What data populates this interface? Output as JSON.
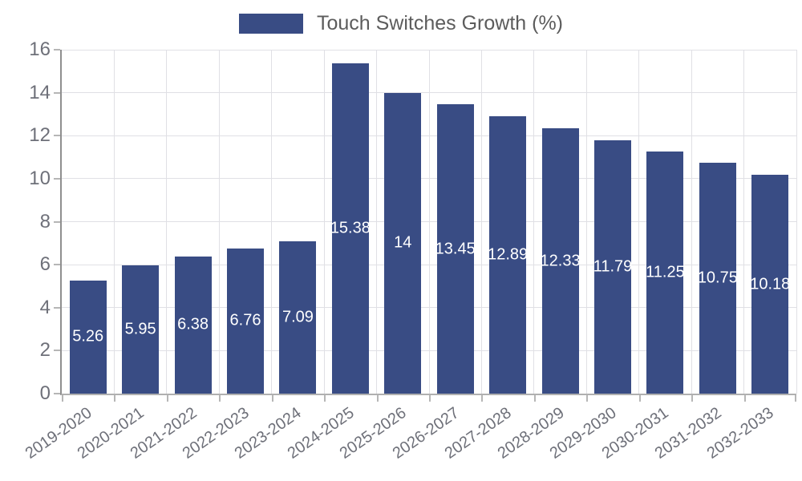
{
  "legend": {
    "label": "Touch Switches Growth (%)"
  },
  "chart_data": {
    "type": "bar",
    "title": "",
    "categories": [
      "2019-2020",
      "2020-2021",
      "2021-2022",
      "2022-2023",
      "2023-2024",
      "2024-2025",
      "2025-2026",
      "2026-2027",
      "2027-2028",
      "2028-2029",
      "2029-2030",
      "2030-2031",
      "2031-2032",
      "2032-2033"
    ],
    "series": [
      {
        "name": "Touch Switches Growth (%)",
        "values": [
          5.26,
          5.95,
          6.38,
          6.76,
          7.09,
          15.38,
          14,
          13.45,
          12.89,
          12.33,
          11.79,
          11.25,
          10.75,
          10.18
        ]
      }
    ],
    "xlabel": "",
    "ylabel": "",
    "ylim": [
      0,
      16
    ],
    "yticks": [
      0,
      2,
      4,
      6,
      8,
      10,
      12,
      14,
      16
    ],
    "grid": "horizontal-and-vertical",
    "legend_position": "top-center",
    "value_label_position": "inside-center",
    "x_label_rotation_deg": 35
  },
  "colors": {
    "bar": "#394c84",
    "bar_label": "#ffffff",
    "grid_line": "#e0e0e5",
    "axis_line_y": "#8f8f8f",
    "axis_line_x": "#b0b0b0",
    "tick_mark": "#b6b6b6",
    "axis_text": "#6e7079",
    "legend_text": "#5c5c5c",
    "background": "#ffffff"
  }
}
